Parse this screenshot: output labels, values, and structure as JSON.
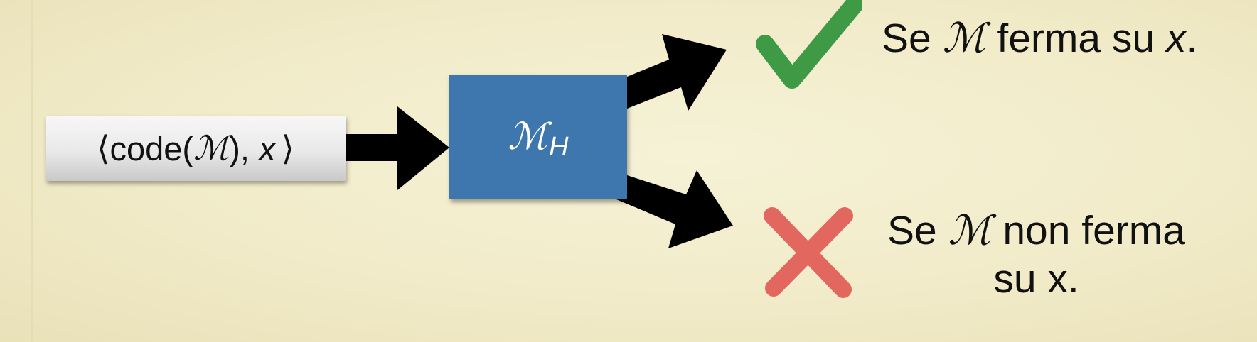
{
  "input_box": {
    "open_bracket": "⟨",
    "code_prefix": "code(",
    "machine_symbol": "ℳ",
    "code_suffix": "), ",
    "variable": "x",
    "close_bracket": "⟩"
  },
  "machine_box": {
    "symbol": "ℳ",
    "subscript": "H",
    "color": "#3d77ae"
  },
  "halt_result": {
    "icon": "checkmark-icon",
    "color": "#3f9a45",
    "prefix": "Se ",
    "machine_symbol": "ℳ",
    "middle": " ferma su ",
    "variable": "x",
    "suffix": "."
  },
  "nohalt_result": {
    "icon": "cross-icon",
    "color": "#e2675f",
    "prefix": "Se ",
    "machine_symbol": "ℳ",
    "line1_suffix": " non ferma",
    "line2": "su x."
  }
}
